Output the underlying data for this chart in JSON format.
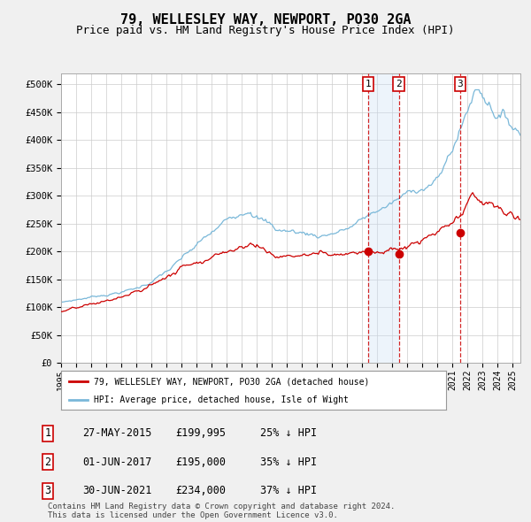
{
  "title": "79, WELLESLEY WAY, NEWPORT, PO30 2GA",
  "subtitle": "Price paid vs. HM Land Registry's House Price Index (HPI)",
  "title_fontsize": 11,
  "subtitle_fontsize": 9,
  "ylabel_ticks": [
    "£0",
    "£50K",
    "£100K",
    "£150K",
    "£200K",
    "£250K",
    "£300K",
    "£350K",
    "£400K",
    "£450K",
    "£500K"
  ],
  "ytick_vals": [
    0,
    50000,
    100000,
    150000,
    200000,
    250000,
    300000,
    350000,
    400000,
    450000,
    500000
  ],
  "ylim": [
    0,
    520000
  ],
  "xlim_start": 1995.0,
  "xlim_end": 2025.5,
  "sale_dates": [
    2015.41,
    2017.42,
    2021.5
  ],
  "sale_prices": [
    199995,
    195000,
    234000
  ],
  "sale_labels": [
    "1",
    "2",
    "3"
  ],
  "background_color": "#f0f0f0",
  "plot_bg_color": "#ffffff",
  "hpi_line_color": "#7ab8d9",
  "price_line_color": "#cc0000",
  "shade_color": "#cce0f5",
  "dashed_line_color": "#cc0000",
  "grid_color": "#cccccc",
  "legend_entries": [
    "79, WELLESLEY WAY, NEWPORT, PO30 2GA (detached house)",
    "HPI: Average price, detached house, Isle of Wight"
  ],
  "table_rows": [
    [
      "1",
      "27-MAY-2015",
      "£199,995",
      "25% ↓ HPI"
    ],
    [
      "2",
      "01-JUN-2017",
      "£195,000",
      "35% ↓ HPI"
    ],
    [
      "3",
      "30-JUN-2021",
      "£234,000",
      "37% ↓ HPI"
    ]
  ],
  "footer": "Contains HM Land Registry data © Crown copyright and database right 2024.\nThis data is licensed under the Open Government Licence v3.0.",
  "font_family": "DejaVu Sans Mono"
}
